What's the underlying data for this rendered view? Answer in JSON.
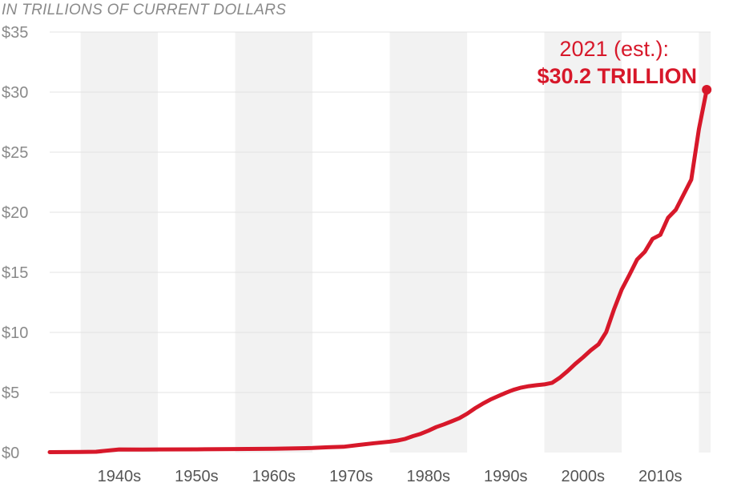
{
  "chart_data": {
    "type": "line",
    "subtitle": "IN TRILLIONS OF CURRENT DOLLARS",
    "ylim": [
      0,
      35
    ],
    "y_ticks": [
      0,
      5,
      10,
      15,
      20,
      25,
      30,
      35
    ],
    "y_tick_labels": [
      "$0",
      "$5",
      "$10",
      "$15",
      "$20",
      "$25",
      "$30",
      "$35"
    ],
    "xlim": [
      1936,
      2021.5
    ],
    "decades": [
      {
        "label": "1940s",
        "start": 1940,
        "shaded": true
      },
      {
        "label": "1950s",
        "start": 1950,
        "shaded": false
      },
      {
        "label": "1960s",
        "start": 1960,
        "shaded": true
      },
      {
        "label": "1970s",
        "start": 1970,
        "shaded": false
      },
      {
        "label": "1980s",
        "start": 1980,
        "shaded": true
      },
      {
        "label": "1990s",
        "start": 1990,
        "shaded": false
      },
      {
        "label": "2000s",
        "start": 2000,
        "shaded": true
      },
      {
        "label": "2010s",
        "start": 2010,
        "shaded": false
      },
      {
        "label": "",
        "start": 2020,
        "shaded": true
      }
    ],
    "grid": true,
    "series": [
      {
        "color": "#d7182a",
        "x": [
          1936,
          1938,
          1940,
          1942,
          1945,
          1948,
          1950,
          1955,
          1960,
          1965,
          1970,
          1972,
          1974,
          1976,
          1978,
          1980,
          1981,
          1982,
          1983,
          1984,
          1985,
          1986,
          1987,
          1988,
          1989,
          1990,
          1991,
          1992,
          1993,
          1994,
          1995,
          1996,
          1997,
          1998,
          1999,
          2000,
          2001,
          2002,
          2003,
          2004,
          2005,
          2006,
          2007,
          2008,
          2009,
          2010,
          2011,
          2012,
          2013,
          2014,
          2015,
          2016,
          2017,
          2018,
          2019,
          2020,
          2021
        ],
        "values": [
          0.03,
          0.04,
          0.05,
          0.07,
          0.26,
          0.25,
          0.26,
          0.27,
          0.29,
          0.32,
          0.38,
          0.44,
          0.48,
          0.63,
          0.78,
          0.91,
          1.0,
          1.14,
          1.37,
          1.56,
          1.82,
          2.12,
          2.35,
          2.6,
          2.86,
          3.23,
          3.67,
          4.06,
          4.41,
          4.69,
          4.97,
          5.22,
          5.41,
          5.53,
          5.61,
          5.67,
          5.81,
          6.23,
          6.78,
          7.38,
          7.93,
          8.51,
          9.01,
          10.03,
          11.91,
          13.56,
          14.79,
          16.07,
          16.72,
          17.79,
          18.12,
          19.54,
          20.21,
          21.46,
          22.72,
          26.95,
          30.2
        ]
      }
    ],
    "annotation": {
      "line1": "2021 (est.):",
      "line2": "$30.2 TRILLION",
      "x": 2021,
      "y": 30.2,
      "color": "#d7182a"
    }
  }
}
